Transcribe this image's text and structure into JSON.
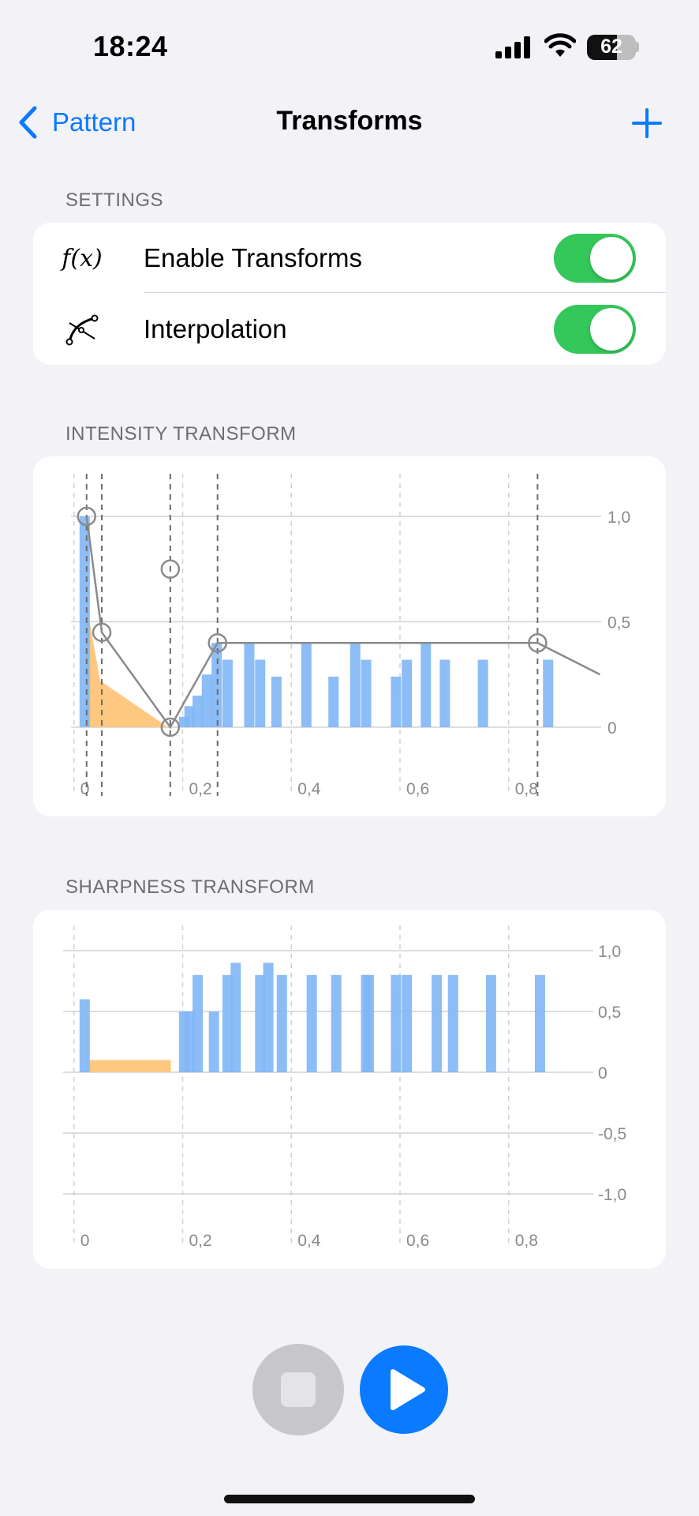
{
  "status": {
    "time": "18:24",
    "battery": "62"
  },
  "nav": {
    "back_label": "Pattern",
    "title": "Transforms"
  },
  "settings": {
    "header": "SETTINGS",
    "rows": [
      {
        "icon": "function-icon",
        "icon_text": "f(x)",
        "label": "Enable Transforms",
        "on": true
      },
      {
        "icon": "curve-icon",
        "label": "Interpolation",
        "on": true
      }
    ]
  },
  "intensity": {
    "header": "INTENSITY TRANSFORM"
  },
  "sharpness": {
    "header": "SHARPNESS TRANSFORM"
  },
  "colors": {
    "accent": "#0a7aff",
    "toggle_on": "#34c759",
    "bar": "#7fb6f5",
    "bar_dark": "#4a95f0",
    "fill": "#ffc880",
    "curve": "#8a8a8e"
  },
  "chart_data": [
    {
      "type": "bar",
      "title": "INTENSITY TRANSFORM",
      "xlim": [
        -0.02,
        0.95
      ],
      "ylim": [
        0,
        1.0
      ],
      "x_ticks": [
        0,
        0.2,
        0.4,
        0.6,
        0.8
      ],
      "x_tick_labels": [
        "0",
        "0,2",
        "0,4",
        "0,6",
        "0,8"
      ],
      "y_ticks": [
        0,
        0.5,
        1.0
      ],
      "y_tick_labels": [
        "0",
        "0,5",
        "1,0"
      ],
      "grid": true,
      "bars": [
        {
          "x": -0.013,
          "y": 1.0
        },
        {
          "x": 0.17,
          "y": 0.05
        },
        {
          "x": 0.18,
          "y": 0.1
        },
        {
          "x": 0.195,
          "y": 0.15
        },
        {
          "x": 0.212,
          "y": 0.25
        },
        {
          "x": 0.23,
          "y": 0.4
        },
        {
          "x": 0.25,
          "y": 0.32
        },
        {
          "x": 0.29,
          "y": 0.4
        },
        {
          "x": 0.31,
          "y": 0.32
        },
        {
          "x": 0.34,
          "y": 0.24
        },
        {
          "x": 0.395,
          "y": 0.4
        },
        {
          "x": 0.445,
          "y": 0.24
        },
        {
          "x": 0.485,
          "y": 0.4
        },
        {
          "x": 0.505,
          "y": 0.32
        },
        {
          "x": 0.56,
          "y": 0.24
        },
        {
          "x": 0.58,
          "y": 0.32
        },
        {
          "x": 0.615,
          "y": 0.4
        },
        {
          "x": 0.65,
          "y": 0.32
        },
        {
          "x": 0.72,
          "y": 0.32
        },
        {
          "x": 0.84,
          "y": 0.32
        }
      ],
      "area": [
        [
          0,
          0.58
        ],
        [
          0.025,
          0.22
        ],
        [
          0.15,
          0
        ]
      ],
      "curve": [
        [
          0,
          1.0
        ],
        [
          0.028,
          0.45
        ],
        [
          0.154,
          0
        ],
        [
          0.241,
          0.4
        ],
        [
          0.83,
          0.4
        ],
        [
          0.945,
          0.25
        ]
      ],
      "handles": [
        [
          0,
          1.0
        ],
        [
          0.028,
          0.45
        ],
        [
          0.154,
          0
        ],
        [
          0.241,
          0.4
        ],
        [
          0.83,
          0.4
        ],
        [
          0.154,
          0.75
        ]
      ],
      "markers": [
        0,
        0.028,
        0.154,
        0.241,
        0.83
      ]
    },
    {
      "type": "bar",
      "title": "SHARPNESS TRANSFORM",
      "xlim": [
        -0.02,
        0.95
      ],
      "ylim": [
        -1.0,
        1.0
      ],
      "x_ticks": [
        0,
        0.2,
        0.4,
        0.6,
        0.8
      ],
      "x_tick_labels": [
        "0",
        "0,2",
        "0,4",
        "0,6",
        "0,8"
      ],
      "y_ticks": [
        1.0,
        0.5,
        0,
        -0.5,
        -1.0
      ],
      "y_tick_labels": [
        "1,0",
        "0,5",
        "0",
        "-0,5",
        "-1,0"
      ],
      "grid": true,
      "bars": [
        {
          "x": -0.013,
          "y": 0.6
        },
        {
          "x": 0.17,
          "y": 0.5
        },
        {
          "x": 0.18,
          "y": 0.5
        },
        {
          "x": 0.195,
          "y": 0.8
        },
        {
          "x": 0.225,
          "y": 0.5
        },
        {
          "x": 0.25,
          "y": 0.8
        },
        {
          "x": 0.265,
          "y": 0.9
        },
        {
          "x": 0.31,
          "y": 0.8
        },
        {
          "x": 0.325,
          "y": 0.9
        },
        {
          "x": 0.35,
          "y": 0.8
        },
        {
          "x": 0.405,
          "y": 0.8
        },
        {
          "x": 0.45,
          "y": 0.8
        },
        {
          "x": 0.505,
          "y": 0.8
        },
        {
          "x": 0.51,
          "y": 0.8
        },
        {
          "x": 0.56,
          "y": 0.8
        },
        {
          "x": 0.58,
          "y": 0.8
        },
        {
          "x": 0.635,
          "y": 0.8
        },
        {
          "x": 0.665,
          "y": 0.8
        },
        {
          "x": 0.735,
          "y": 0.8
        },
        {
          "x": 0.825,
          "y": 0.8
        }
      ],
      "band": {
        "x0": 0.005,
        "x1": 0.155,
        "y": 0.1
      }
    }
  ]
}
